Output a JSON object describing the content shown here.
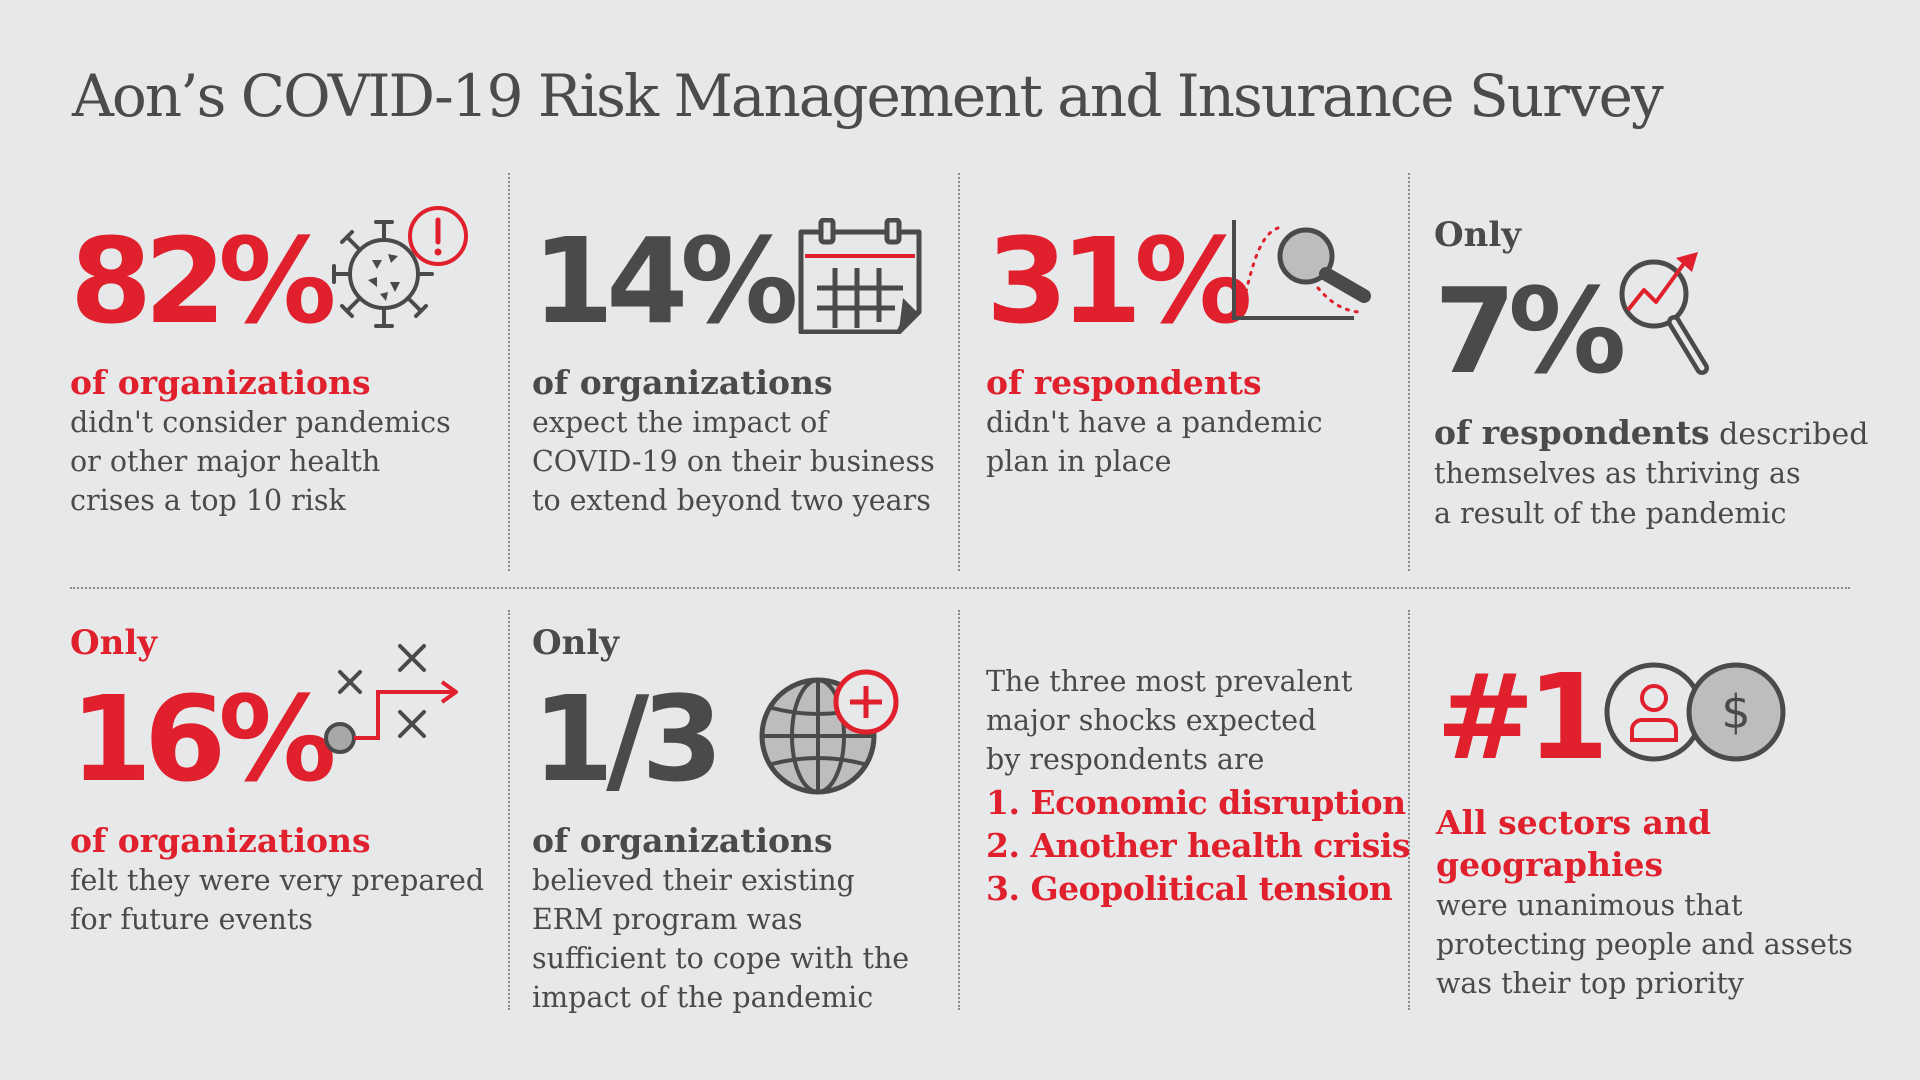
{
  "title": "Aon’s COVID-19 Risk Management and Insurance Survey",
  "colors": {
    "accent": "#e0202c",
    "text": "#4a4a4a",
    "background": "#e7e8e9"
  },
  "stats": [
    {
      "value": "82%",
      "lead": "of organizations",
      "lines": [
        "didn't consider pandemics",
        "or other major health",
        "crises a top 10 risk"
      ],
      "icon": "virus-alert-icon"
    },
    {
      "value": "14%",
      "lead": "of organizations",
      "lines": [
        "expect the impact of",
        "COVID-19 on their business",
        "to extend beyond two years"
      ],
      "icon": "calendar-icon"
    },
    {
      "value": "31%",
      "lead": "of respondents",
      "lines": [
        "didn't have a pandemic",
        "plan in place"
      ],
      "icon": "magnifier-chart-icon"
    },
    {
      "prefix": "Only",
      "value": "7%",
      "lead": "of respondents",
      "lead_suffix": " described",
      "lines": [
        "themselves as thriving as",
        "a result of the pandemic"
      ],
      "icon": "magnifier-growth-icon"
    },
    {
      "prefix": "Only",
      "value": "16%",
      "lead": "of organizations",
      "lines": [
        "felt they were very prepared",
        "for future events"
      ],
      "icon": "strategy-path-icon"
    },
    {
      "prefix": "Only",
      "value": "1/3",
      "lead": "of organizations",
      "lines": [
        "believed their existing",
        "ERM program was",
        "sufficient to cope with the",
        "impact of the pandemic"
      ],
      "icon": "globe-plus-icon"
    },
    {
      "intro": [
        "The three most prevalent",
        "major shocks expected",
        "by respondents are"
      ],
      "shocks": [
        "1. Economic disruption",
        "2. Another health crisis",
        "3. Geopolitical tension"
      ]
    },
    {
      "value": "#1",
      "lead": [
        "All sectors and",
        "geographies"
      ],
      "lines": [
        "were unanimous that",
        "protecting people and assets",
        "was their top priority"
      ],
      "icon": "person-dollar-icon"
    }
  ]
}
